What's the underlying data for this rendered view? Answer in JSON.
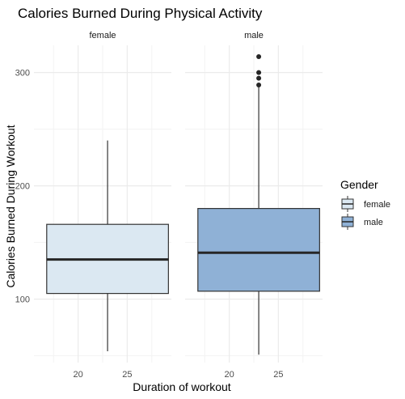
{
  "chart_data": {
    "type": "box",
    "title": "Calories Burned During Physical Activity",
    "xlabel": "Duration of workout",
    "ylabel": "Calories Burned During Workout",
    "x_ticks": [
      20,
      25
    ],
    "x_range": [
      15.5,
      29.5
    ],
    "y_ticks": [
      100,
      200,
      300
    ],
    "y_range": [
      44,
      324
    ],
    "legend": {
      "title": "Gender",
      "position": "right",
      "entries": [
        {
          "label": "female",
          "color": "#dbe8f2"
        },
        {
          "label": "male",
          "color": "#8fb1d6"
        }
      ]
    },
    "panels": [
      {
        "label": "female",
        "color": "#dbe8f2",
        "box": {
          "x_min": 16.8,
          "x_max": 29.2,
          "x_center": 23,
          "whisker_low": 54,
          "q1": 105,
          "median": 135,
          "q3": 166,
          "whisker_high": 240,
          "outliers": []
        }
      },
      {
        "label": "male",
        "color": "#8fb1d6",
        "box": {
          "x_min": 16.8,
          "x_max": 29.2,
          "x_center": 23,
          "whisker_low": 51,
          "q1": 107,
          "median": 141,
          "q3": 180,
          "whisker_high": 288,
          "outliers": [
            289,
            295,
            300,
            314
          ]
        }
      }
    ],
    "grid": true
  }
}
